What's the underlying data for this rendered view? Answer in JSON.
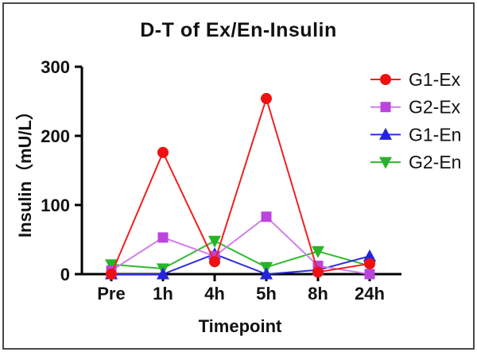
{
  "figure": {
    "title": "D-T of Ex/En-Insulin",
    "xlabel": "Timepoint",
    "ylabel": "Insulin（mU/L）"
  },
  "chart_data": {
    "type": "line",
    "title": "D-T of Ex/En-Insulin",
    "xlabel": "Timepoint",
    "ylabel": "Insulin（mU/L）",
    "categories": [
      "Pre",
      "1h",
      "4h",
      "5h",
      "8h",
      "24h"
    ],
    "ylim": [
      0,
      300
    ],
    "yticks": [
      0,
      100,
      200,
      300
    ],
    "grid": false,
    "legend_position": "top-right",
    "axis_color": "#000000",
    "series": [
      {
        "name": "G1-Ex",
        "marker": "circle",
        "marker_color": "#ee1111",
        "line_color": "#f02020",
        "values": [
          0,
          176,
          18,
          254,
          3,
          15
        ]
      },
      {
        "name": "G2-Ex",
        "marker": "square",
        "marker_color": "#bb44dd",
        "line_color": "#d07fea",
        "values": [
          5,
          53,
          26,
          83,
          12,
          0
        ]
      },
      {
        "name": "G1-En",
        "marker": "triangle-up",
        "marker_color": "#2424dc",
        "line_color": "#2c2cdc",
        "values": [
          0,
          0,
          29,
          0,
          6,
          26
        ]
      },
      {
        "name": "G2-En",
        "marker": "triangle-down",
        "marker_color": "#28b428",
        "line_color": "#30ba30",
        "values": [
          14,
          8,
          48,
          10,
          33,
          12
        ]
      }
    ]
  }
}
